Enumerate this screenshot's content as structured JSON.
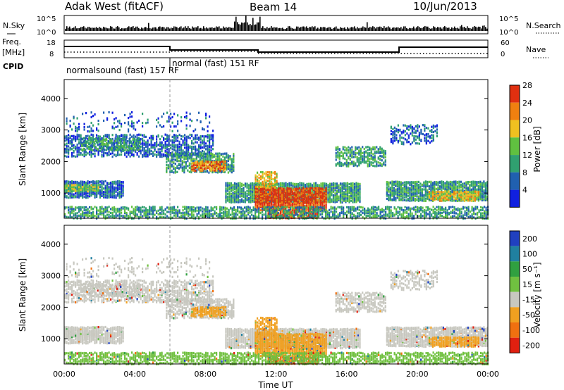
{
  "header": {
    "station": "Adak West (fitACF)",
    "beam": "Beam 14",
    "date": "10/Jun/2013"
  },
  "sky_panel": {
    "left_label": "N.Sky",
    "right_label": "N.Search",
    "tick_top": "10^5",
    "tick_bottom": "10^0",
    "right_tick_top": "10^5",
    "right_tick_bottom": "10^0"
  },
  "freq_panel": {
    "left_label_line1": "Freq.",
    "left_label_line2": "[MHz]",
    "cpid_label": "CPID",
    "right_label": "Nave",
    "left_ticks": [
      "18",
      "8"
    ],
    "right_ticks": [
      "60",
      "0"
    ],
    "modes": [
      {
        "text": "normalsound (fast) 157 RF"
      },
      {
        "text": "normal (fast) 151 RF"
      }
    ]
  },
  "chart_data": [
    {
      "type": "heatmap",
      "name": "power",
      "ylabel": "Slant Range [km]",
      "y_ticks": [
        "1000",
        "2000",
        "3000",
        "4000"
      ],
      "ylim": [
        200,
        4600
      ],
      "colorbar_label": "Power [dB]",
      "colorbar_ticks": [
        "4",
        "8",
        "12",
        "16",
        "20",
        "24",
        "28"
      ],
      "colorbar_colors": [
        "#1020e0",
        "#2060b0",
        "#30a070",
        "#60c040",
        "#f0c020",
        "#f08010",
        "#e03010"
      ]
    },
    {
      "type": "heatmap",
      "name": "velocity",
      "ylabel": "Slant Range [km]",
      "y_ticks": [
        "1000",
        "2000",
        "3000",
        "4000"
      ],
      "ylim": [
        200,
        4600
      ],
      "colorbar_label": "Velocity [m s⁻¹]",
      "colorbar_ticks": [
        "200",
        "100",
        "50",
        "15",
        "-15",
        "-50",
        "-100",
        "-200"
      ],
      "colorbar_colors": [
        "#2040c0",
        "#2080a0",
        "#30a040",
        "#70c040",
        "#c8c8c0",
        "#f0a020",
        "#f07010",
        "#e02010"
      ]
    }
  ],
  "x_axis": {
    "ticks": [
      "00:00",
      "04:00",
      "08:00",
      "12:00",
      "16:00",
      "20:00",
      "00:00"
    ],
    "xlabel": "Time UT"
  }
}
